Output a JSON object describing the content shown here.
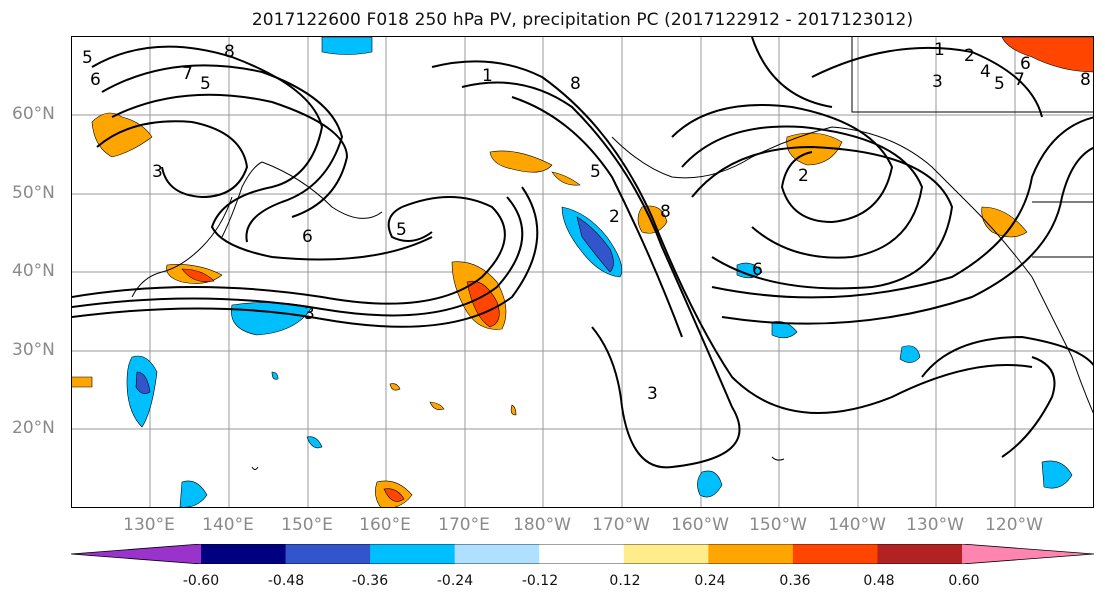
{
  "title": "2017122600 F018 250 hPa PV, precipitation PC (2017122912 - 2017123012)",
  "lat_labels": [
    "60°N",
    "50°N",
    "40°N",
    "30°N",
    "20°N"
  ],
  "lon_labels": [
    "130°E",
    "140°E",
    "150°E",
    "160°E",
    "170°E",
    "180°W",
    "170°W",
    "160°W",
    "150°W",
    "140°W",
    "130°W",
    "120°W"
  ],
  "colorbar": {
    "colors": [
      "#9933cc",
      "#000080",
      "#3355cc",
      "#00bfff",
      "#b0e0ff",
      "#ffffff",
      "#ffec8b",
      "#ffa500",
      "#ff4500",
      "#b22222",
      "#ff85b0"
    ],
    "tick_labels": [
      "-0.60",
      "-0.48",
      "-0.36",
      "-0.24",
      "-0.12",
      "0.12",
      "0.24",
      "0.36",
      "0.48",
      "0.60"
    ]
  },
  "contour_labels": [
    "5",
    "6",
    "7",
    "8",
    "5",
    "3",
    "5",
    "6",
    "1",
    "8",
    "2",
    "3",
    "1",
    "2",
    "3",
    "4",
    "5",
    "6",
    "7",
    "8",
    "8",
    "2",
    "6",
    "5",
    "3"
  ]
}
